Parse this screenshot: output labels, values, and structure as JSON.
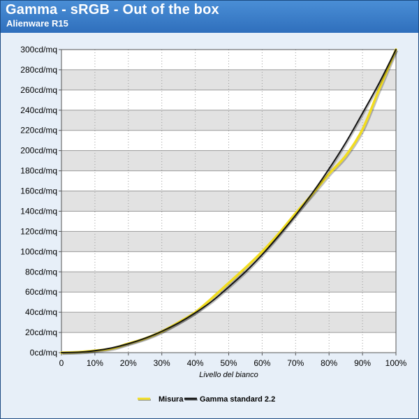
{
  "header": {
    "title": "Gamma - sRGB - Out of the box",
    "subtitle": "Alienware R15"
  },
  "chart_data": {
    "type": "line",
    "title": "Gamma - sRGB - Out of the box",
    "subtitle": "Alienware R15",
    "xlabel": "Livello del bianco",
    "ylabel": "",
    "xlim": [
      0,
      100
    ],
    "ylim": [
      0,
      300
    ],
    "x_ticks": [
      "0",
      "10%",
      "20%",
      "30%",
      "40%",
      "50%",
      "60%",
      "70%",
      "80%",
      "90%",
      "100%"
    ],
    "y_ticks": [
      "0cd/mq",
      "20cd/mq",
      "40cd/mq",
      "60cd/mq",
      "80cd/mq",
      "100cd/mq",
      "120cd/mq",
      "140cd/mq",
      "160cd/mq",
      "180cd/mq",
      "200cd/mq",
      "220cd/mq",
      "240cd/mq",
      "260cd/mq",
      "280cd/mq",
      "300cd/mq"
    ],
    "grid": true,
    "legend_position": "bottom",
    "x": [
      0,
      5,
      10,
      15,
      20,
      25,
      30,
      35,
      40,
      45,
      50,
      55,
      60,
      65,
      70,
      75,
      80,
      85,
      90,
      95,
      100
    ],
    "series": [
      {
        "name": "Misura",
        "color": "#f2dd1f",
        "values": [
          0,
          0.5,
          2,
          4,
          9,
          14,
          21,
          30,
          40,
          54,
          69,
          84,
          100,
          118,
          138,
          157,
          177,
          195,
          221,
          261,
          300
        ]
      },
      {
        "name": "Gamma standard 2.2",
        "color": "#111111",
        "values": [
          0,
          0.4,
          1.9,
          4.7,
          8.8,
          14.3,
          21.1,
          29.4,
          39.4,
          50.9,
          65,
          80,
          97,
          116,
          136,
          158,
          182,
          208,
          237,
          267,
          300
        ]
      }
    ]
  }
}
